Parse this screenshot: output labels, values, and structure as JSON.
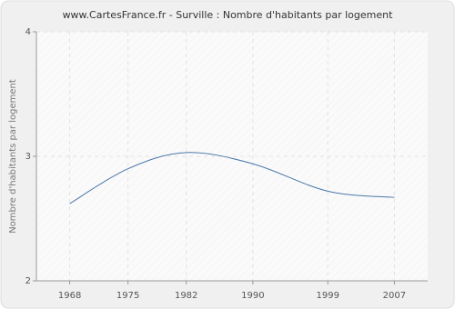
{
  "chart_data": {
    "type": "line",
    "title": "www.CartesFrance.fr - Surville : Nombre d'habitants par logement",
    "y_label": "Nombre d'habitants par logement",
    "x": [
      1968,
      1975,
      1982,
      1990,
      1999,
      2007
    ],
    "series": [
      {
        "name": "Surville",
        "color": "#4a78a8",
        "values": [
          2.62,
          2.9,
          3.03,
          2.94,
          2.72,
          2.67
        ]
      }
    ],
    "xlim": [
      1964,
      2011
    ],
    "xticks": [
      1968,
      1975,
      1982,
      1990,
      1999,
      2007
    ],
    "ylim": [
      2,
      4
    ],
    "yticks": [
      2,
      3,
      4
    ],
    "grid": true
  }
}
